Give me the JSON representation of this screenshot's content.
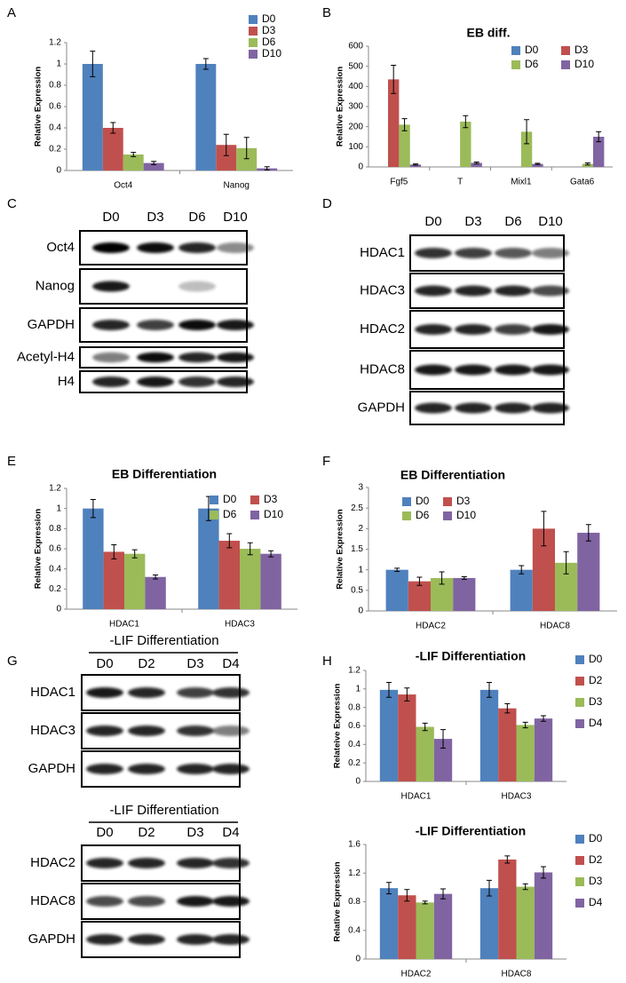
{
  "panel_labels": [
    "A",
    "B",
    "C",
    "D",
    "E",
    "F",
    "G",
    "H"
  ],
  "chart_data": [
    {
      "type": "bar",
      "ylabel": "Relative Expression",
      "categories": [
        "Oct4",
        "Nanog"
      ],
      "ylim": [
        0,
        1.2
      ],
      "yticks": [
        0,
        0.2,
        0.4,
        0.6,
        0.8,
        1,
        1.2
      ],
      "legend": "upper right",
      "series": [
        {
          "name": "D0",
          "color": "#4f81bd",
          "values": [
            1,
            1
          ],
          "errors": [
            0.12,
            0.05
          ]
        },
        {
          "name": "D3",
          "color": "#c0504d",
          "values": [
            0.4,
            0.24
          ],
          "errors": [
            0.05,
            0.1
          ]
        },
        {
          "name": "D6",
          "color": "#9bbb59",
          "values": [
            0.15,
            0.21
          ],
          "errors": [
            0.02,
            0.1
          ]
        },
        {
          "name": "D10",
          "color": "#8064a2",
          "values": [
            0.07,
            0.02
          ],
          "errors": [
            0.015,
            0.015
          ]
        }
      ]
    },
    {
      "type": "bar",
      "title": "EB diff.",
      "ylabel": "Relative Expression",
      "categories": [
        "Fgf5",
        "T",
        "Mixl1",
        "Gata6"
      ],
      "ylim": [
        0,
        600
      ],
      "yticks": [
        0,
        100,
        200,
        300,
        400,
        500,
        600
      ],
      "legend": "upper right",
      "series": [
        {
          "name": "D0",
          "color": "#4f81bd",
          "values": [
            0,
            0,
            0,
            0
          ],
          "errors": [
            0,
            0,
            0,
            0
          ]
        },
        {
          "name": "D3",
          "color": "#c0504d",
          "values": [
            435,
            0,
            0,
            0
          ],
          "errors": [
            70,
            0,
            0,
            0
          ]
        },
        {
          "name": "D6",
          "color": "#9bbb59",
          "values": [
            210,
            225,
            175,
            15
          ],
          "errors": [
            30,
            30,
            60,
            5
          ]
        },
        {
          "name": "D10",
          "color": "#8064a2",
          "values": [
            12,
            20,
            15,
            150
          ],
          "errors": [
            3,
            4,
            3,
            25
          ]
        }
      ]
    },
    {
      "type": "bar",
      "title": "EB Differentiation",
      "ylabel": "Relative Expression",
      "categories": [
        "HDAC1",
        "HDAC3"
      ],
      "ylim": [
        0,
        1.2
      ],
      "yticks": [
        0,
        0.2,
        0.4,
        0.6,
        0.8,
        1,
        1.2
      ],
      "legend": "upper right",
      "series": [
        {
          "name": "D0",
          "color": "#4f81bd",
          "values": [
            1,
            1
          ],
          "errors": [
            0.09,
            0.12
          ]
        },
        {
          "name": "D3",
          "color": "#c0504d",
          "values": [
            0.57,
            0.68
          ],
          "errors": [
            0.07,
            0.07
          ]
        },
        {
          "name": "D6",
          "color": "#9bbb59",
          "values": [
            0.55,
            0.6
          ],
          "errors": [
            0.04,
            0.06
          ]
        },
        {
          "name": "D10",
          "color": "#8064a2",
          "values": [
            0.32,
            0.55
          ],
          "errors": [
            0.02,
            0.03
          ]
        }
      ]
    },
    {
      "type": "bar",
      "title": "EB Differentiation",
      "ylabel": "Relative Expression",
      "categories": [
        "HDAC2",
        "HDAC8"
      ],
      "ylim": [
        0,
        3
      ],
      "yticks": [
        0,
        0.5,
        1,
        1.5,
        2,
        2.5,
        3
      ],
      "legend": "upper left",
      "series": [
        {
          "name": "D0",
          "color": "#4f81bd",
          "values": [
            1,
            1
          ],
          "errors": [
            0.04,
            0.1
          ]
        },
        {
          "name": "D3",
          "color": "#c0504d",
          "values": [
            0.72,
            2
          ],
          "errors": [
            0.1,
            0.42
          ]
        },
        {
          "name": "D6",
          "color": "#9bbb59",
          "values": [
            0.8,
            1.17
          ],
          "errors": [
            0.15,
            0.27
          ]
        },
        {
          "name": "D10",
          "color": "#8064a2",
          "values": [
            0.8,
            1.9
          ],
          "errors": [
            0.03,
            0.2
          ]
        }
      ]
    },
    {
      "type": "bar",
      "title": "-LIF Differentiation",
      "ylabel": "Relateive Expression",
      "categories": [
        "HDAC1",
        "HDAC3"
      ],
      "ylim": [
        0,
        1.2
      ],
      "yticks": [
        0,
        0.2,
        0.4,
        0.6,
        0.8,
        1,
        1.2
      ],
      "legend": "right",
      "series": [
        {
          "name": "D0",
          "color": "#4f81bd",
          "values": [
            0.99,
            0.99
          ],
          "errors": [
            0.08,
            0.08
          ]
        },
        {
          "name": "D2",
          "color": "#c0504d",
          "values": [
            0.94,
            0.79
          ],
          "errors": [
            0.07,
            0.05
          ]
        },
        {
          "name": "D3",
          "color": "#9bbb59",
          "values": [
            0.59,
            0.61
          ],
          "errors": [
            0.04,
            0.03
          ]
        },
        {
          "name": "D4",
          "color": "#8064a2",
          "values": [
            0.46,
            0.68
          ],
          "errors": [
            0.1,
            0.03
          ]
        }
      ]
    },
    {
      "type": "bar",
      "title": "-LIF Differentiation",
      "ylabel": "Relative Expression",
      "categories": [
        "HDAC2",
        "HDAC8"
      ],
      "ylim": [
        0,
        1.6
      ],
      "yticks": [
        0,
        0.4,
        0.8,
        1.2,
        1.6
      ],
      "legend": "right",
      "series": [
        {
          "name": "D0",
          "color": "#4f81bd",
          "values": [
            0.99,
            0.99
          ],
          "errors": [
            0.08,
            0.11
          ]
        },
        {
          "name": "D2",
          "color": "#c0504d",
          "values": [
            0.89,
            1.39
          ],
          "errors": [
            0.08,
            0.05
          ]
        },
        {
          "name": "D3",
          "color": "#9bbb59",
          "values": [
            0.79,
            1.01
          ],
          "errors": [
            0.02,
            0.04
          ]
        },
        {
          "name": "D4",
          "color": "#8064a2",
          "values": [
            0.91,
            1.21
          ],
          "errors": [
            0.07,
            0.08
          ]
        }
      ]
    }
  ],
  "blots": [
    {
      "lanes": [
        "D0",
        "D3",
        "D6",
        "D10"
      ],
      "rows": [
        "Oct4",
        "Nanog",
        "GAPDH",
        "Acetyl-H4",
        "H4"
      ]
    },
    {
      "lanes": [
        "D0",
        "D3",
        "D6",
        "D10"
      ],
      "rows": [
        "HDAC1",
        "HDAC3",
        "HDAC2",
        "HDAC8",
        "GAPDH"
      ]
    },
    {
      "title": "-LIF Differentiation",
      "lanes": [
        "D0",
        "D2",
        "D3",
        "D4"
      ],
      "rows": [
        "HDAC1",
        "HDAC3",
        "GAPDH"
      ]
    },
    {
      "title": "-LIF Differentiation",
      "lanes": [
        "D0",
        "D2",
        "D3",
        "D4"
      ],
      "rows": [
        "HDAC2",
        "HDAC8",
        "GAPDH"
      ]
    }
  ]
}
